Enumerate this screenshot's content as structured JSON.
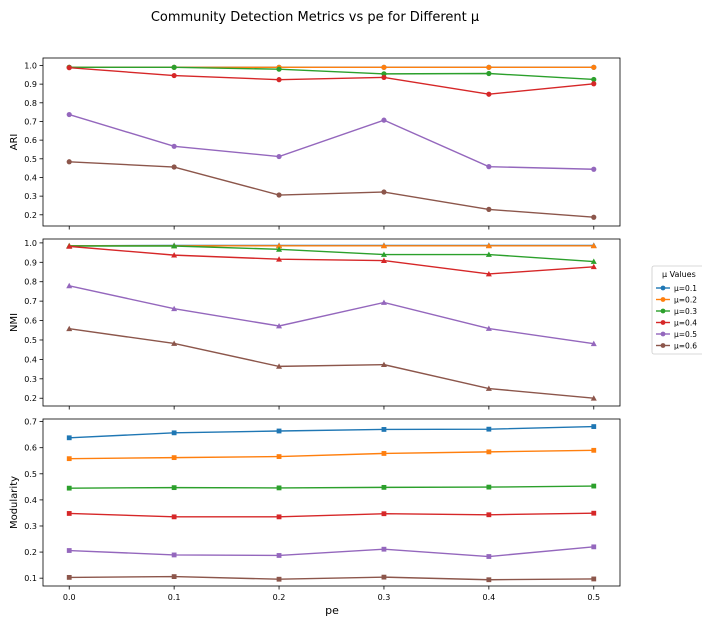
{
  "title": "Community Detection Metrics vs pe for Different μ",
  "xlabel": "pe",
  "legend": {
    "title": "μ Values",
    "entries": [
      "μ=0.1",
      "μ=0.2",
      "μ=0.3",
      "μ=0.4",
      "μ=0.5",
      "μ=0.6"
    ],
    "placement": "center-right, outside"
  },
  "colors": [
    "#1f77b4",
    "#ff7f0e",
    "#2ca02c",
    "#d62728",
    "#9467bd",
    "#8c564b"
  ],
  "chart_data": [
    {
      "type": "line",
      "ylabel": "ARI",
      "marker": "circle",
      "x": [
        0.0,
        0.1,
        0.2,
        0.3,
        0.4,
        0.5
      ],
      "xticks": [
        "0.0",
        "0.1",
        "0.2",
        "0.3",
        "0.4",
        "0.5"
      ],
      "ylim": [
        0.14,
        1.04
      ],
      "yticks": [
        "0.2",
        "0.3",
        "0.4",
        "0.5",
        "0.6",
        "0.7",
        "0.8",
        "0.9",
        "1.0"
      ],
      "series": [
        {
          "name": "μ=0.1",
          "values": [
            0.99,
            0.99,
            0.99,
            0.99,
            0.99,
            0.99
          ]
        },
        {
          "name": "μ=0.2",
          "values": [
            0.99,
            0.99,
            0.99,
            0.99,
            0.99,
            0.99
          ]
        },
        {
          "name": "μ=0.3",
          "values": [
            0.99,
            0.99,
            0.98,
            0.955,
            0.957,
            0.925
          ]
        },
        {
          "name": "μ=0.4",
          "values": [
            0.988,
            0.946,
            0.924,
            0.936,
            0.846,
            0.902
          ]
        },
        {
          "name": "μ=0.5",
          "values": [
            0.737,
            0.567,
            0.512,
            0.707,
            0.458,
            0.444
          ]
        },
        {
          "name": "μ=0.6",
          "values": [
            0.484,
            0.456,
            0.306,
            0.322,
            0.229,
            0.187
          ]
        }
      ]
    },
    {
      "type": "line",
      "ylabel": "NMI",
      "marker": "triangle",
      "x": [
        0.0,
        0.1,
        0.2,
        0.3,
        0.4,
        0.5
      ],
      "xticks": [
        "0.0",
        "0.1",
        "0.2",
        "0.3",
        "0.4",
        "0.5"
      ],
      "ylim": [
        0.16,
        1.02
      ],
      "yticks": [
        "0.2",
        "0.3",
        "0.4",
        "0.5",
        "0.6",
        "0.7",
        "0.8",
        "0.9",
        "1.0"
      ],
      "series": [
        {
          "name": "μ=0.1",
          "values": [
            0.985,
            0.987,
            0.987,
            0.987,
            0.987,
            0.987
          ]
        },
        {
          "name": "μ=0.2",
          "values": [
            0.985,
            0.985,
            0.985,
            0.985,
            0.985,
            0.985
          ]
        },
        {
          "name": "μ=0.3",
          "values": [
            0.984,
            0.984,
            0.967,
            0.94,
            0.94,
            0.904
          ]
        },
        {
          "name": "μ=0.4",
          "values": [
            0.982,
            0.937,
            0.916,
            0.909,
            0.84,
            0.877
          ]
        },
        {
          "name": "μ=0.5",
          "values": [
            0.779,
            0.661,
            0.572,
            0.693,
            0.559,
            0.481
          ]
        },
        {
          "name": "μ=0.6",
          "values": [
            0.558,
            0.482,
            0.364,
            0.373,
            0.25,
            0.2
          ]
        }
      ]
    },
    {
      "type": "line",
      "ylabel": "Modularity",
      "marker": "square",
      "x": [
        0.0,
        0.1,
        0.2,
        0.3,
        0.4,
        0.5
      ],
      "xticks": [
        "0.0",
        "0.1",
        "0.2",
        "0.3",
        "0.4",
        "0.5"
      ],
      "ylim": [
        0.07,
        0.71
      ],
      "yticks": [
        "0.1",
        "0.2",
        "0.3",
        "0.4",
        "0.5",
        "0.6",
        "0.7"
      ],
      "series": [
        {
          "name": "μ=0.1",
          "values": [
            0.638,
            0.657,
            0.664,
            0.67,
            0.671,
            0.681
          ]
        },
        {
          "name": "μ=0.2",
          "values": [
            0.558,
            0.562,
            0.566,
            0.578,
            0.584,
            0.59
          ]
        },
        {
          "name": "μ=0.3",
          "values": [
            0.445,
            0.447,
            0.446,
            0.448,
            0.449,
            0.453
          ]
        },
        {
          "name": "μ=0.4",
          "values": [
            0.348,
            0.335,
            0.335,
            0.347,
            0.343,
            0.349
          ]
        },
        {
          "name": "μ=0.5",
          "values": [
            0.206,
            0.189,
            0.187,
            0.211,
            0.183,
            0.22
          ]
        },
        {
          "name": "μ=0.6",
          "values": [
            0.103,
            0.106,
            0.096,
            0.104,
            0.094,
            0.097
          ]
        }
      ]
    }
  ]
}
